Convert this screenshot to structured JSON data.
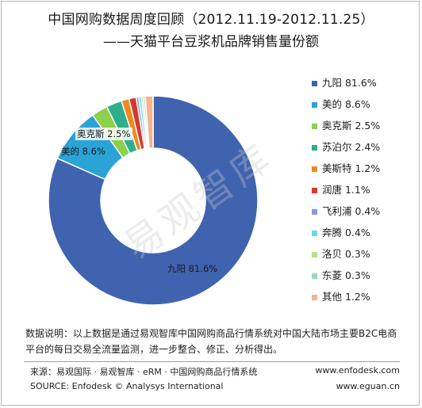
{
  "header": {
    "title": "中国网购数据周度回顾（2012.11.19-2012.11.25）",
    "subtitle": "——天猫平台豆浆机品牌销售量份额"
  },
  "watermark": "易观智库",
  "chart_data": {
    "type": "pie",
    "title": "中国网购数据周度回顾（2012.11.19-2012.11.25）",
    "subtitle": "——天猫平台豆浆机品牌销售量份额",
    "donut": true,
    "legend_position": "right",
    "slices": [
      {
        "label": "九阳",
        "value": 81.6,
        "display": "81.6%",
        "color": "#4063b0"
      },
      {
        "label": "美的",
        "value": 8.6,
        "display": "8.6%",
        "color": "#2aa3d6"
      },
      {
        "label": "奥克斯",
        "value": 2.5,
        "display": "2.5%",
        "color": "#8bd14b"
      },
      {
        "label": "苏泊尔",
        "value": 2.4,
        "display": "2.4%",
        "color": "#2fae8d"
      },
      {
        "label": "美斯特",
        "value": 1.2,
        "display": "1.2%",
        "color": "#f08a1e"
      },
      {
        "label": "润唐",
        "value": 1.1,
        "display": "1.1%",
        "color": "#d33a2c"
      },
      {
        "label": "飞利浦",
        "value": 0.4,
        "display": "0.4%",
        "color": "#8a9ad6"
      },
      {
        "label": "奔腾",
        "value": 0.4,
        "display": "0.4%",
        "color": "#6fd3f2"
      },
      {
        "label": "洛贝",
        "value": 0.3,
        "display": "0.3%",
        "color": "#b8e08e"
      },
      {
        "label": "东菱",
        "value": 0.3,
        "display": "0.3%",
        "color": "#98d9c6"
      },
      {
        "label": "其他",
        "value": 1.2,
        "display": "1.2%",
        "color": "#f5b48c"
      }
    ],
    "data_labels": [
      {
        "text": "九阳 81.6%"
      },
      {
        "text": "美的 8.6%"
      },
      {
        "text": "奥克斯 2.5%"
      }
    ]
  },
  "note": {
    "line1": "数据说明：以上数据是通过易观智库中国网购商品行情系统对中国大陆市场主要B2C电商",
    "line2": "平台的每日交易全流量监测，进一步整合、修正、分析得出。"
  },
  "footer": {
    "source_cn": "来源：易观国际 · 易观智库 · eRM · 中国网购商品行情系统",
    "source_en": "SOURCE: Enfodesk © Analysys International",
    "url1": "www.enfodesk.com",
    "url2": "www.eguan.cn"
  }
}
